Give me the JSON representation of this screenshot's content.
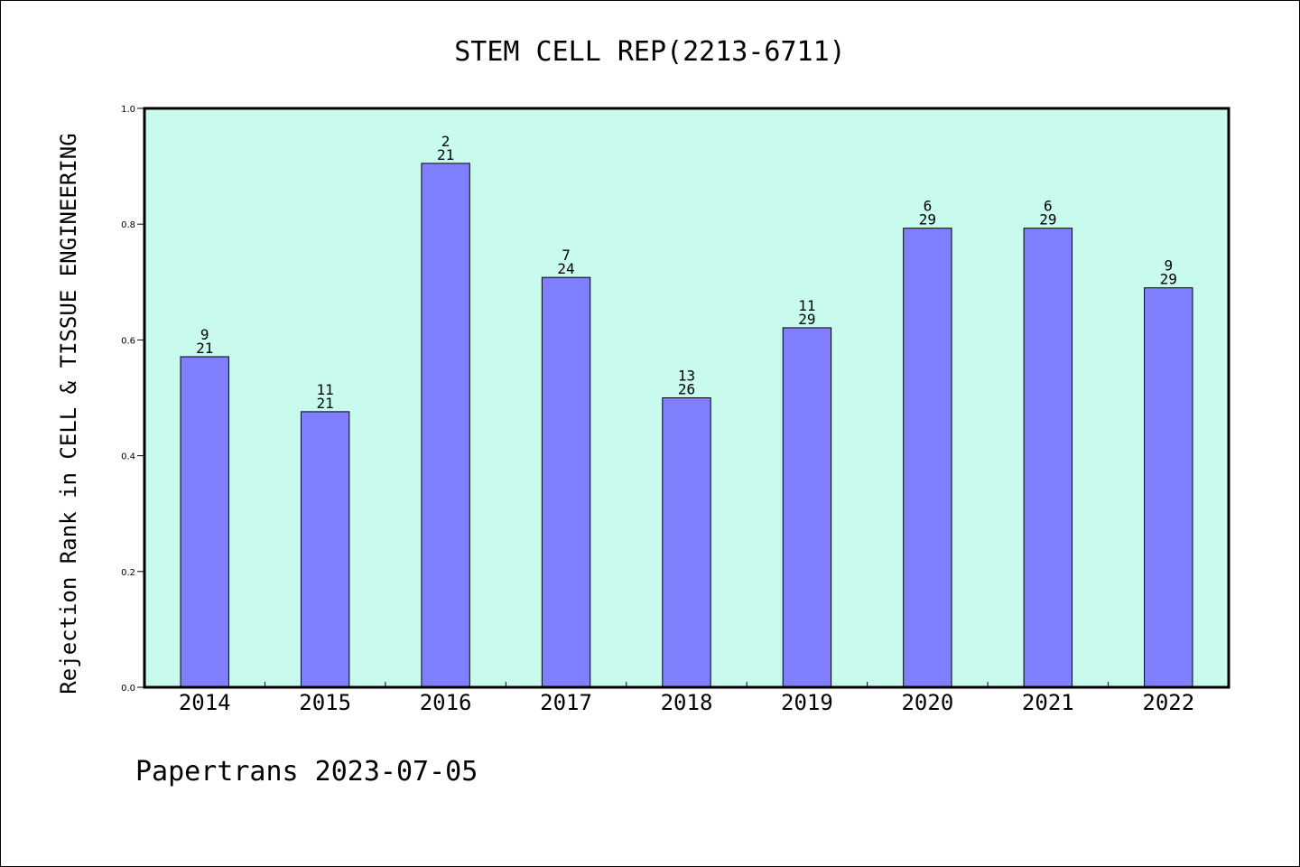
{
  "chart_data": {
    "type": "bar",
    "title": "STEM CELL REP(2213-6711)",
    "xlabel": "",
    "ylabel": "Rejection Rank in CELL & TISSUE ENGINEERING",
    "categories": [
      "2014",
      "2015",
      "2016",
      "2017",
      "2018",
      "2019",
      "2020",
      "2021",
      "2022"
    ],
    "values": [
      0.571,
      0.476,
      0.905,
      0.708,
      0.5,
      0.621,
      0.793,
      0.793,
      0.69
    ],
    "labels": [
      {
        "rank": "9",
        "total": "21"
      },
      {
        "rank": "11",
        "total": "21"
      },
      {
        "rank": "2",
        "total": "21"
      },
      {
        "rank": "7",
        "total": "24"
      },
      {
        "rank": "13",
        "total": "26"
      },
      {
        "rank": "11",
        "total": "29"
      },
      {
        "rank": "6",
        "total": "29"
      },
      {
        "rank": "6",
        "total": "29"
      },
      {
        "rank": "9",
        "total": "29"
      }
    ],
    "yticks": [
      "0.0",
      "0.2",
      "0.4",
      "0.6",
      "0.8",
      "1.0"
    ],
    "ylim": [
      0,
      1
    ],
    "grid": false,
    "colors": {
      "bar": "#8080ff",
      "plot_background": "#c8faee",
      "edge": "#000000"
    }
  },
  "footer": {
    "text": "Papertrans 2023-07-05"
  }
}
